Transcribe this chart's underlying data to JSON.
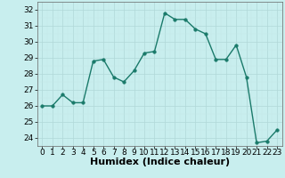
{
  "x": [
    0,
    1,
    2,
    3,
    4,
    5,
    6,
    7,
    8,
    9,
    10,
    11,
    12,
    13,
    14,
    15,
    16,
    17,
    18,
    19,
    20,
    21,
    22,
    23
  ],
  "y": [
    26.0,
    26.0,
    26.7,
    26.2,
    26.2,
    28.8,
    28.9,
    27.8,
    27.5,
    28.2,
    29.3,
    29.4,
    31.8,
    31.4,
    31.4,
    30.8,
    30.5,
    28.9,
    28.9,
    29.8,
    27.8,
    23.7,
    23.8,
    24.5
  ],
  "line_color": "#1a7a6a",
  "marker_color": "#1a7a6a",
  "bg_color": "#c8eeee",
  "grid_major_color": "#b0d8d8",
  "grid_minor_color": "#c4e8e8",
  "xlabel": "Humidex (Indice chaleur)",
  "xlabel_fontsize": 8,
  "xlim": [
    -0.5,
    23.5
  ],
  "ylim": [
    23.5,
    32.5
  ],
  "yticks": [
    24,
    25,
    26,
    27,
    28,
    29,
    30,
    31,
    32
  ],
  "xticks": [
    0,
    1,
    2,
    3,
    4,
    5,
    6,
    7,
    8,
    9,
    10,
    11,
    12,
    13,
    14,
    15,
    16,
    17,
    18,
    19,
    20,
    21,
    22,
    23
  ],
  "tick_fontsize": 6.5,
  "marker_size": 2.5,
  "line_width": 1.0
}
